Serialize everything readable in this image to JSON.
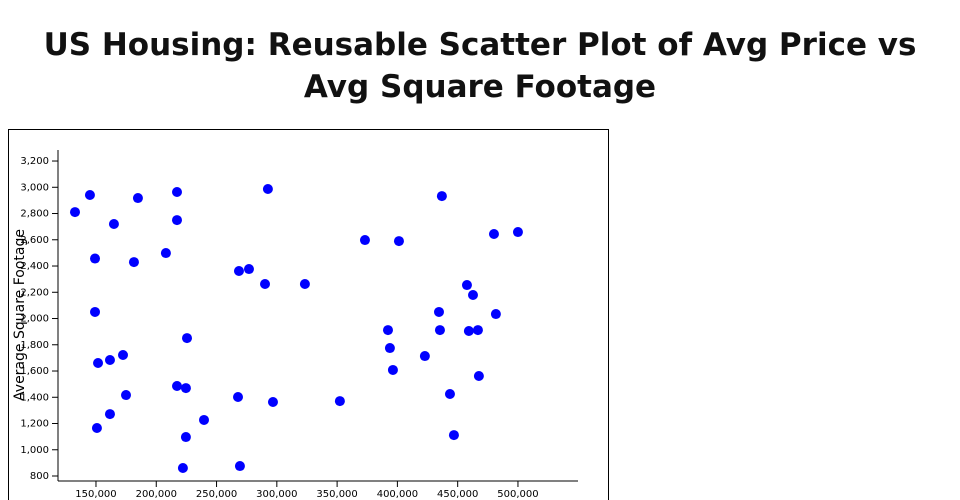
{
  "chart_data": {
    "type": "scatter",
    "title": "US Housing: Reusable Scatter Plot of Avg Price vs Avg Square Footage",
    "y_label": "Average Square Footage",
    "color": "#0000ff",
    "x": [
      132600,
      145000,
      164900,
      184800,
      217200,
      217200,
      292600,
      436900,
      149200,
      181500,
      208000,
      268600,
      276900,
      290200,
      323300,
      373100,
      401300,
      480100,
      500000,
      149200,
      225500,
      151700,
      161600,
      172400,
      174900,
      161600,
      150800,
      217200,
      224600,
      224600,
      239600,
      222100,
      269400,
      267800,
      296800,
      352300,
      392200,
      393800,
      396300,
      422800,
      434500,
      435300,
      457700,
      462700,
      459300,
      466800,
      481700,
      443600,
      467600,
      446900
    ],
    "values": [
      2811,
      2941,
      2720,
      2918,
      2964,
      2750,
      2987,
      2933,
      2457,
      2430,
      2499,
      2362,
      2377,
      2263,
      2263,
      2598,
      2590,
      2644,
      2659,
      2050,
      1851,
      1661,
      1684,
      1722,
      1417,
      1272,
      1166,
      1486,
      1470,
      1097,
      1227,
      861,
      876,
      1402,
      1364,
      1371,
      1912,
      1775,
      1608,
      1714,
      2050,
      1912,
      2255,
      2179,
      1905,
      1912,
      2034,
      1425,
      1562,
      1112
    ],
    "xlim": [
      118500,
      549800
    ],
    "ylim": [
      762,
      3284
    ],
    "xticks": [
      {
        "value": 150000,
        "label": "150,000"
      },
      {
        "value": 200000,
        "label": "200,000"
      },
      {
        "value": 250000,
        "label": "250,000"
      },
      {
        "value": 300000,
        "label": "300,000"
      },
      {
        "value": 350000,
        "label": "350,000"
      },
      {
        "value": 400000,
        "label": "400,000"
      },
      {
        "value": 450000,
        "label": "450,000"
      },
      {
        "value": 500000,
        "label": "500,000"
      }
    ],
    "yticks": [
      800,
      {
        "value": 1000,
        "label": "1,000"
      },
      {
        "value": 1200,
        "label": "1,200"
      },
      {
        "value": 1400,
        "label": "1,400"
      },
      {
        "value": 1600,
        "label": "1,600"
      },
      {
        "value": 1800,
        "label": "1,800"
      },
      {
        "value": 2000,
        "label": "2,000"
      },
      {
        "value": 2200,
        "label": "2,200"
      },
      {
        "value": 2400,
        "label": "2,400"
      },
      {
        "value": 2600,
        "label": "2,600"
      },
      {
        "value": 2800,
        "label": "2,800"
      },
      {
        "value": 3000,
        "label": "3,000"
      },
      {
        "value": 3200,
        "label": "3,200"
      }
    ]
  }
}
